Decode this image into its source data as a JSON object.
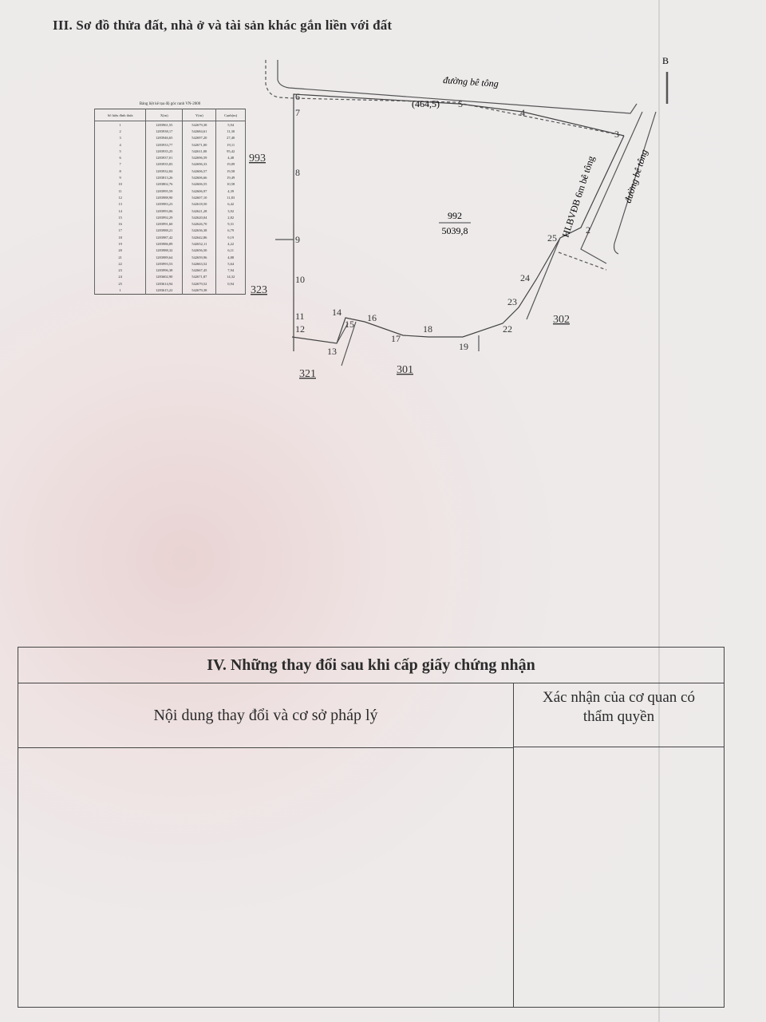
{
  "section3": {
    "title": "III. Sơ đồ thửa đất, nhà ở và tài sản khác gắn liền với đất"
  },
  "coord_table": {
    "caption": "Bảng liệt kê tọa độ góc ranh VN-2000",
    "headers": [
      "Số hiệu đỉnh thửa",
      "X(m)",
      "Y(m)",
      "Cạnh(m)"
    ],
    "rows": [
      [
        "1",
        "1283961,55",
        "542679,38",
        "5,94"
      ],
      [
        "2",
        "1283938,17",
        "542684,61",
        "11,30"
      ],
      [
        "3",
        "1283946,65",
        "542697,20",
        "27,40"
      ],
      [
        "4",
        "1283933,77",
        "542671,00",
        "19,11"
      ],
      [
        "5",
        "1283935,25",
        "542611,00",
        "95,42"
      ],
      [
        "6",
        "1283937,01",
        "542696,59",
        "4,48"
      ],
      [
        "7",
        "1283935,83",
        "542696,33",
        "19,09"
      ],
      [
        "8",
        "1283932,84",
        "542606,57",
        "19,58"
      ],
      [
        "9",
        "1283813,26",
        "542606,66",
        "19,49"
      ],
      [
        "10",
        "1283802,76",
        "542606,55",
        "10,58"
      ],
      [
        "11",
        "1283995,59",
        "542606,97",
        "4,39"
      ],
      [
        "12",
        "1283988,90",
        "542607,10",
        "11,83"
      ],
      [
        "13",
        "1283983,23",
        "542618,50",
        "6,42"
      ],
      [
        "14",
        "1283993,06",
        "542621,28",
        "3,92"
      ],
      [
        "15",
        "1283992,29",
        "542620,04",
        "2,82"
      ],
      [
        "16",
        "1283991,60",
        "542626,70",
        "9,31"
      ],
      [
        "17",
        "1283988,21",
        "542636,38",
        "6,79"
      ],
      [
        "18",
        "1283987,42",
        "542642,86",
        "9,19"
      ],
      [
        "19",
        "1283986,89",
        "542652,11",
        "4,22"
      ],
      [
        "20",
        "1283988,32",
        "542656,50",
        "6,11"
      ],
      [
        "21",
        "1283989,64",
        "542659,96",
        "4,88"
      ],
      [
        "22",
        "1283993,53",
        "542663,52",
        "5,64"
      ],
      [
        "23",
        "1283996,38",
        "542667,45",
        "7,94"
      ],
      [
        "24",
        "1283602,90",
        "542671,87",
        "14,32"
      ],
      [
        "25",
        "1283614,94",
        "542679,52",
        "0,94"
      ],
      [
        "1",
        "1283615,22",
        "542679,38",
        ""
      ]
    ]
  },
  "map": {
    "road_top": "đường bê tông",
    "road_right": "đường bê tông",
    "road_area": "(464,5)",
    "corridor": "HLBVĐB 6m bê tông",
    "parcel_number": "992",
    "parcel_area": "5039,8",
    "north_mark": "B",
    "neighbors": [
      "993",
      "323",
      "321",
      "301",
      "302"
    ],
    "points": [
      "2",
      "3",
      "4",
      "5",
      "6",
      "7",
      "8",
      "9",
      "10",
      "11",
      "12",
      "13",
      "14",
      "15",
      "16",
      "17",
      "18",
      "19",
      "22",
      "23",
      "24",
      "25"
    ]
  },
  "section4": {
    "title": "IV. Những thay đổi sau khi cấp giấy chứng nhận",
    "col1": "Nội dung thay đổi và cơ sở pháp lý",
    "col2_line1": "Xác nhận của cơ quan có",
    "col2_line2": "thẩm quyền"
  }
}
